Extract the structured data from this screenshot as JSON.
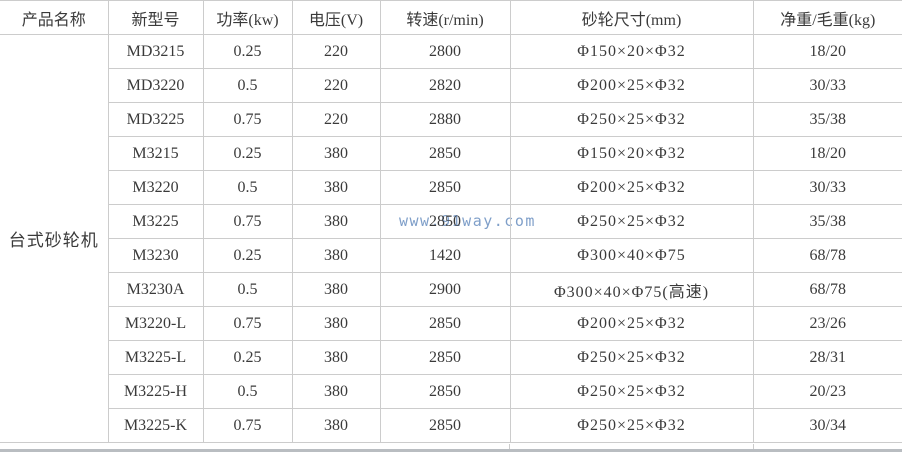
{
  "table": {
    "headers": [
      "产品名称",
      "新型号",
      "功率(kw)",
      "电压(V)",
      "转速(r/min)",
      "砂轮尺寸(mm)",
      "净重/毛重(kg)"
    ],
    "product_name": "台式砂轮机",
    "rows": [
      [
        "MD3215",
        "0.25",
        "220",
        "2800",
        "Φ150×20×Φ32",
        "18/20"
      ],
      [
        "MD3220",
        "0.5",
        "220",
        "2820",
        "Φ200×25×Φ32",
        "30/33"
      ],
      [
        "MD3225",
        "0.75",
        "220",
        "2880",
        "Φ250×25×Φ32",
        "35/38"
      ],
      [
        "M3215",
        "0.25",
        "380",
        "2850",
        "Φ150×20×Φ32",
        "18/20"
      ],
      [
        "M3220",
        "0.5",
        "380",
        "2850",
        "Φ200×25×Φ32",
        "30/33"
      ],
      [
        "M3225",
        "0.75",
        "380",
        "2850",
        "Φ250×25×Φ32",
        "35/38"
      ],
      [
        "M3230",
        "0.25",
        "380",
        "1420",
        "Φ300×40×Φ75",
        "68/78"
      ],
      [
        "M3230A",
        "0.5",
        "380",
        "2900",
        "Φ300×40×Φ75(高速)",
        "68/78"
      ],
      [
        "M3220-L",
        "0.75",
        "380",
        "2850",
        "Φ200×25×Φ32",
        "23/26"
      ],
      [
        "M3225-L",
        "0.25",
        "380",
        "2850",
        "Φ250×25×Φ32",
        "28/31"
      ],
      [
        "M3225-H",
        "0.5",
        "380",
        "2850",
        "Φ250×25×Φ32",
        "20/23"
      ],
      [
        "M3225-K",
        "0.75",
        "380",
        "2850",
        "Φ250×25×Φ32",
        "30/34"
      ]
    ]
  },
  "watermark": {
    "text": "www.91way.com",
    "color": "#7f9fc9"
  },
  "colors": {
    "border": "#cccccc",
    "text": "#3a3a3a",
    "bottom_bar": "#b9bdc1"
  }
}
